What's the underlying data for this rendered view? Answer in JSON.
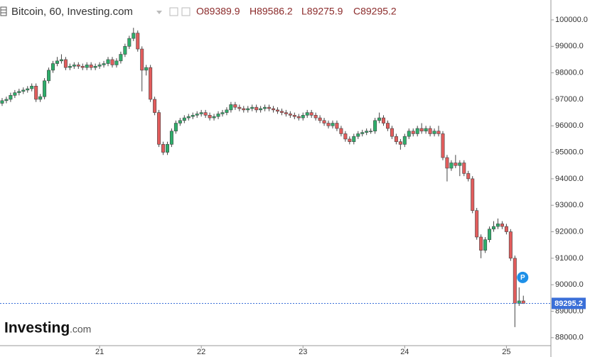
{
  "chart_data": {
    "type": "candlestick",
    "title": "Bitcoin, 60, Investing.com",
    "ohlc_labels": [
      "O89389.9",
      "H89586.2",
      "L89275.9",
      "C89295.2"
    ],
    "open": [
      96850,
      96950,
      97000,
      97150,
      97250,
      97300,
      97350,
      97400,
      97500,
      97000,
      97100,
      97700,
      98100,
      98350,
      98450,
      98500,
      98200,
      98250,
      98300,
      98250,
      98200,
      98300,
      98200,
      98250,
      98300,
      98350,
      98500,
      98300,
      98450,
      98700,
      99000,
      99300,
      99500,
      98900,
      98100,
      98200,
      97000,
      96500,
      95300,
      95000,
      95300,
      95800,
      96100,
      96200,
      96300,
      96350,
      96400,
      96450,
      96500,
      96400,
      96300,
      96350,
      96450,
      96500,
      96600,
      96800,
      96700,
      96650,
      96600,
      96650,
      96700,
      96600,
      96650,
      96700,
      96650,
      96600,
      96550,
      96500,
      96450,
      96400,
      96350,
      96300,
      96400,
      96500,
      96400,
      96300,
      96200,
      96100,
      96000,
      96100,
      95900,
      95700,
      95500,
      95400,
      95600,
      95700,
      95750,
      95800,
      95800,
      96200,
      96300,
      96100,
      95900,
      95600,
      95400,
      95300,
      95600,
      95800,
      95700,
      95900,
      95800,
      95900,
      95700,
      95800,
      95700,
      94800,
      94400,
      94600,
      94500,
      94600,
      94200,
      94000,
      92800,
      91800,
      91300,
      91700,
      92100,
      92200,
      92300,
      92200,
      92000,
      91000,
      89300,
      89389.9
    ],
    "high": [
      97050,
      97100,
      97250,
      97350,
      97400,
      97450,
      97500,
      97600,
      97600,
      97200,
      97800,
      98200,
      98450,
      98600,
      98700,
      98600,
      98350,
      98400,
      98400,
      98350,
      98400,
      98400,
      98350,
      98400,
      98450,
      98600,
      98600,
      98550,
      98800,
      99100,
      99400,
      99700,
      99600,
      99000,
      98300,
      98300,
      97100,
      96600,
      95400,
      95400,
      95900,
      96200,
      96300,
      96400,
      96450,
      96500,
      96550,
      96600,
      96600,
      96500,
      96450,
      96550,
      96600,
      96700,
      96900,
      96900,
      96800,
      96750,
      96750,
      96800,
      96800,
      96750,
      96800,
      96800,
      96750,
      96700,
      96650,
      96600,
      96550,
      96500,
      96450,
      96500,
      96600,
      96600,
      96500,
      96400,
      96300,
      96200,
      96200,
      96200,
      96000,
      95800,
      95600,
      95700,
      95800,
      95850,
      95900,
      95900,
      96300,
      96500,
      96400,
      96200,
      96000,
      95700,
      95500,
      95700,
      95900,
      95900,
      96000,
      96100,
      96000,
      96000,
      95900,
      96000,
      95800,
      94900,
      94700,
      94900,
      94700,
      94700,
      94300,
      94100,
      92900,
      91900,
      91800,
      92200,
      92400,
      92500,
      92400,
      92300,
      92100,
      91100,
      89900,
      89586.2
    ],
    "low": [
      96750,
      96850,
      96900,
      97050,
      97150,
      97200,
      97250,
      97300,
      96900,
      96900,
      97000,
      97600,
      98000,
      98250,
      98350,
      98100,
      98100,
      98150,
      98150,
      98100,
      98100,
      98100,
      98100,
      98150,
      98200,
      98250,
      98200,
      98200,
      98350,
      98600,
      98900,
      99200,
      98800,
      97300,
      97900,
      96900,
      96400,
      95200,
      94900,
      94900,
      95200,
      95700,
      96000,
      96100,
      96200,
      96250,
      96300,
      96350,
      96300,
      96200,
      96200,
      96250,
      96350,
      96400,
      96500,
      96600,
      96550,
      96500,
      96500,
      96550,
      96500,
      96500,
      96550,
      96550,
      96500,
      96450,
      96400,
      96350,
      96300,
      96250,
      96200,
      96200,
      96300,
      96300,
      96200,
      96100,
      96000,
      95900,
      95900,
      95800,
      95600,
      95400,
      95300,
      95300,
      95500,
      95600,
      95650,
      95700,
      95700,
      96100,
      96000,
      95800,
      95500,
      95300,
      95100,
      95200,
      95500,
      95600,
      95600,
      95700,
      95700,
      95600,
      95600,
      95600,
      94700,
      93900,
      94300,
      94400,
      94100,
      94100,
      93900,
      92700,
      91700,
      91000,
      91200,
      91600,
      92000,
      92100,
      92100,
      91900,
      90900,
      88400,
      89200,
      89275.9
    ],
    "close": [
      96950,
      97000,
      97150,
      97250,
      97300,
      97350,
      97400,
      97500,
      97000,
      97100,
      97700,
      98100,
      98350,
      98450,
      98500,
      98200,
      98250,
      98300,
      98250,
      98200,
      98300,
      98200,
      98250,
      98300,
      98350,
      98500,
      98300,
      98450,
      98700,
      99000,
      99300,
      99500,
      98900,
      98100,
      98200,
      97000,
      96500,
      95300,
      95000,
      95300,
      95800,
      96100,
      96200,
      96300,
      96350,
      96400,
      96450,
      96500,
      96400,
      96300,
      96350,
      96450,
      96500,
      96600,
      96800,
      96700,
      96650,
      96600,
      96650,
      96700,
      96600,
      96650,
      96700,
      96650,
      96600,
      96550,
      96500,
      96450,
      96400,
      96350,
      96300,
      96400,
      96500,
      96400,
      96300,
      96200,
      96100,
      96000,
      96100,
      95900,
      95700,
      95500,
      95400,
      95600,
      95700,
      95750,
      95800,
      95800,
      96200,
      96300,
      96100,
      95900,
      95600,
      95400,
      95300,
      95600,
      95800,
      95700,
      95900,
      95800,
      95900,
      95700,
      95800,
      95700,
      94800,
      94400,
      94600,
      94500,
      94600,
      94200,
      94000,
      92800,
      91800,
      91300,
      91700,
      92100,
      92200,
      92300,
      92200,
      92000,
      91000,
      89300,
      89389.9,
      89295.2
    ],
    "up_color": "#2eae6b",
    "down_color": "#e25c5c",
    "last_price": 89295.2,
    "last_price_color": "#3a6fd8",
    "marker_label": "P",
    "xlim": [
      -0.5,
      129.5
    ],
    "xticks": [
      {
        "value": 23,
        "label": "21"
      },
      {
        "value": 47,
        "label": "22"
      },
      {
        "value": 71,
        "label": "23"
      },
      {
        "value": 95,
        "label": "24"
      },
      {
        "value": 119,
        "label": "25"
      }
    ],
    "ylim": [
      87700,
      100750
    ],
    "yticks": [
      {
        "value": 88000,
        "label": "88000.0"
      },
      {
        "value": 89000,
        "label": "89000.0"
      },
      {
        "value": 90000,
        "label": "90000.0"
      },
      {
        "value": 91000,
        "label": "91000.0"
      },
      {
        "value": 92000,
        "label": "92000.0"
      },
      {
        "value": 93000,
        "label": "93000.0"
      },
      {
        "value": 94000,
        "label": "94000.0"
      },
      {
        "value": 95000,
        "label": "95000.0"
      },
      {
        "value": 96000,
        "label": "96000.0"
      },
      {
        "value": 97000,
        "label": "97000.0"
      },
      {
        "value": 98000,
        "label": "98000.0"
      },
      {
        "value": 99000,
        "label": "99000.0"
      },
      {
        "value": 100000,
        "label": "100000.0"
      }
    ]
  },
  "logo": {
    "name": "Investing",
    "suffix": ".com"
  }
}
